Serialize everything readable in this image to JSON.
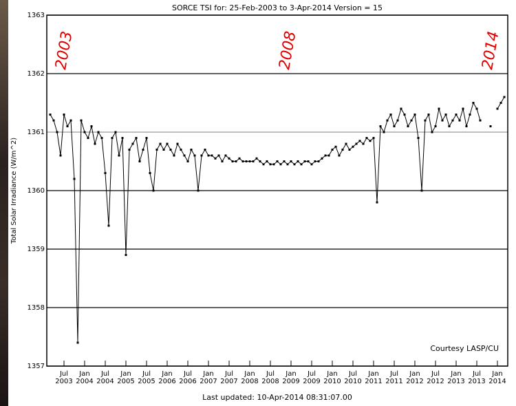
{
  "chart_data": {
    "type": "line",
    "title": "SORCE TSI for: 25-Feb-2003 to  3-Apr-2014 Version = 15",
    "y_label": "Total Solar Irradiance (W/m^2)",
    "footer": "Last updated: 10-Apr-2014 08:31:07.00",
    "credit": "Courtesy LASP/CU",
    "annotations": [
      "2003",
      "2008",
      "2014"
    ],
    "annotation_color": "#e00000",
    "x": [
      "2003-03",
      "2003-04",
      "2003-05",
      "2003-06",
      "2003-07",
      "2003-08",
      "2003-09",
      "2003-10",
      "2003-11",
      "2003-12",
      "2004-01",
      "2004-02",
      "2004-03",
      "2004-04",
      "2004-05",
      "2004-06",
      "2004-07",
      "2004-08",
      "2004-09",
      "2004-10",
      "2004-11",
      "2004-12",
      "2005-01",
      "2005-02",
      "2005-03",
      "2005-04",
      "2005-05",
      "2005-06",
      "2005-07",
      "2005-08",
      "2005-09",
      "2005-10",
      "2005-11",
      "2005-12",
      "2006-01",
      "2006-02",
      "2006-03",
      "2006-04",
      "2006-05",
      "2006-06",
      "2006-07",
      "2006-08",
      "2006-09",
      "2006-10",
      "2006-11",
      "2006-12",
      "2007-01",
      "2007-02",
      "2007-03",
      "2007-04",
      "2007-05",
      "2007-06",
      "2007-07",
      "2007-08",
      "2007-09",
      "2007-10",
      "2007-11",
      "2007-12",
      "2008-01",
      "2008-02",
      "2008-03",
      "2008-04",
      "2008-05",
      "2008-06",
      "2008-07",
      "2008-08",
      "2008-09",
      "2008-10",
      "2008-11",
      "2008-12",
      "2009-01",
      "2009-02",
      "2009-03",
      "2009-04",
      "2009-05",
      "2009-06",
      "2009-07",
      "2009-08",
      "2009-09",
      "2009-10",
      "2009-11",
      "2009-12",
      "2010-01",
      "2010-02",
      "2010-03",
      "2010-04",
      "2010-05",
      "2010-06",
      "2010-07",
      "2010-08",
      "2010-09",
      "2010-10",
      "2010-11",
      "2010-12",
      "2011-01",
      "2011-02",
      "2011-03",
      "2011-04",
      "2011-05",
      "2011-06",
      "2011-07",
      "2011-08",
      "2011-09",
      "2011-10",
      "2011-11",
      "2011-12",
      "2012-01",
      "2012-02",
      "2012-03",
      "2012-04",
      "2012-05",
      "2012-06",
      "2012-07",
      "2012-08",
      "2012-09",
      "2012-10",
      "2012-11",
      "2012-12",
      "2013-01",
      "2013-02",
      "2013-03",
      "2013-04",
      "2013-05",
      "2013-06",
      "2013-07",
      "2013-08",
      "2013-09",
      "2013-10",
      "2013-11",
      "2013-12",
      "2014-01",
      "2014-02",
      "2014-03"
    ],
    "series": [
      {
        "color": "#000000",
        "values": [
          1361.3,
          1361.2,
          1361.0,
          1360.6,
          1361.3,
          1361.1,
          1361.2,
          1360.2,
          1357.4,
          1361.2,
          1361.0,
          1360.9,
          1361.1,
          1360.8,
          1361.0,
          1360.9,
          1360.3,
          1359.4,
          1360.9,
          1361.0,
          1360.6,
          1360.9,
          1358.9,
          1360.7,
          1360.8,
          1360.9,
          1360.5,
          1360.7,
          1360.9,
          1360.3,
          1360.0,
          1360.7,
          1360.8,
          1360.7,
          1360.8,
          1360.7,
          1360.6,
          1360.8,
          1360.7,
          1360.6,
          1360.5,
          1360.7,
          1360.6,
          1360.0,
          1360.6,
          1360.7,
          1360.6,
          1360.6,
          1360.55,
          1360.6,
          1360.5,
          1360.6,
          1360.55,
          1360.5,
          1360.5,
          1360.55,
          1360.5,
          1360.5,
          1360.5,
          1360.5,
          1360.55,
          1360.5,
          1360.45,
          1360.5,
          1360.45,
          1360.45,
          1360.5,
          1360.45,
          1360.5,
          1360.45,
          1360.5,
          1360.45,
          1360.5,
          1360.45,
          1360.5,
          1360.5,
          1360.45,
          1360.5,
          1360.5,
          1360.55,
          1360.6,
          1360.6,
          1360.7,
          1360.75,
          1360.6,
          1360.7,
          1360.8,
          1360.7,
          1360.75,
          1360.8,
          1360.85,
          1360.8,
          1360.9,
          1360.85,
          1360.9,
          1359.8,
          1361.1,
          1361.0,
          1361.2,
          1361.3,
          1361.1,
          1361.2,
          1361.4,
          1361.3,
          1361.1,
          1361.2,
          1361.3,
          1360.9,
          1360.0,
          1361.2,
          1361.3,
          1361.0,
          1361.1,
          1361.4,
          1361.2,
          1361.3,
          1361.1,
          1361.2,
          1361.3,
          1361.2,
          1361.4,
          1361.1,
          1361.3,
          1361.5,
          1361.4,
          1361.2,
          null,
          null,
          1361.1,
          null,
          1361.4,
          1361.5,
          1361.6
        ]
      }
    ],
    "xlim": [
      "2003-02",
      "2014-04"
    ],
    "xticks": [
      {
        "value": "2003-07",
        "label": "Jul\n2003"
      },
      {
        "value": "2004-01",
        "label": "Jan\n2004"
      },
      {
        "value": "2004-07",
        "label": "Jul\n2004"
      },
      {
        "value": "2005-01",
        "label": "Jan\n2005"
      },
      {
        "value": "2005-07",
        "label": "Jul\n2005"
      },
      {
        "value": "2006-01",
        "label": "Jan\n2006"
      },
      {
        "value": "2006-07",
        "label": "Jul\n2006"
      },
      {
        "value": "2007-01",
        "label": "Jan\n2007"
      },
      {
        "value": "2007-07",
        "label": "Jul\n2007"
      },
      {
        "value": "2008-01",
        "label": "Jan\n2008"
      },
      {
        "value": "2008-07",
        "label": "Jul\n2008"
      },
      {
        "value": "2009-01",
        "label": "Jan\n2009"
      },
      {
        "value": "2009-07",
        "label": "Jul\n2009"
      },
      {
        "value": "2010-01",
        "label": "Jan\n2010"
      },
      {
        "value": "2010-07",
        "label": "Jul\n2010"
      },
      {
        "value": "2011-01",
        "label": "Jan\n2011"
      },
      {
        "value": "2011-07",
        "label": "Jul\n2011"
      },
      {
        "value": "2012-01",
        "label": "Jan\n2012"
      },
      {
        "value": "2012-07",
        "label": "Jul\n2012"
      },
      {
        "value": "2013-01",
        "label": "Jan\n2013"
      },
      {
        "value": "2013-07",
        "label": "Jul\n2013"
      },
      {
        "value": "2014-01",
        "label": "Jan\n2014"
      }
    ],
    "ylim": [
      1357,
      1363
    ],
    "yticks": [
      1357,
      1358,
      1359,
      1360,
      1361,
      1362,
      1363
    ],
    "grid": true
  }
}
